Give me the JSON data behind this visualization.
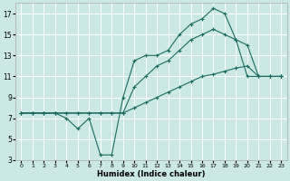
{
  "xlabel": "Humidex (Indice chaleur)",
  "bg_color": "#cce8e4",
  "grid_color": "#ffffff",
  "line_color": "#1a6b60",
  "xlim": [
    -0.5,
    23.5
  ],
  "ylim": [
    3,
    18
  ],
  "xticks": [
    0,
    1,
    2,
    3,
    4,
    5,
    6,
    7,
    8,
    9,
    10,
    11,
    12,
    13,
    14,
    15,
    16,
    17,
    18,
    19,
    20,
    21,
    22,
    23
  ],
  "yticks": [
    3,
    5,
    7,
    9,
    11,
    13,
    15,
    17
  ],
  "series1_x": [
    0,
    1,
    2,
    3,
    4,
    5,
    6,
    7,
    8,
    9,
    10,
    11,
    12,
    13,
    14,
    15,
    16,
    17,
    18,
    19,
    20,
    21,
    22,
    23
  ],
  "series1_y": [
    7.5,
    7.5,
    7.5,
    7.5,
    7.5,
    7.5,
    7.5,
    7.5,
    7.5,
    7.5,
    8.0,
    8.5,
    9.0,
    9.5,
    10.0,
    10.5,
    11.0,
    11.2,
    11.5,
    11.8,
    12.0,
    11.0,
    11.0,
    11.0
  ],
  "series2_x": [
    0,
    1,
    2,
    3,
    4,
    5,
    6,
    7,
    8,
    9,
    10,
    11,
    12,
    13,
    14,
    15,
    16,
    17,
    18,
    19,
    20,
    21,
    22,
    23
  ],
  "series2_y": [
    7.5,
    7.5,
    7.5,
    7.5,
    7.5,
    7.5,
    7.5,
    7.5,
    7.5,
    7.5,
    10.0,
    11.0,
    12.0,
    12.5,
    13.5,
    14.5,
    15.0,
    15.5,
    15.0,
    14.5,
    14.0,
    11.0,
    11.0,
    11.0
  ],
  "series3_x": [
    0,
    1,
    2,
    3,
    4,
    5,
    6,
    7,
    8,
    9,
    10,
    11,
    12,
    13,
    14,
    15,
    16,
    17,
    18,
    19,
    20,
    21,
    22,
    23
  ],
  "series3_y": [
    7.5,
    7.5,
    7.5,
    7.5,
    7.0,
    6.0,
    7.0,
    3.5,
    3.5,
    9.0,
    12.5,
    13.0,
    13.0,
    13.5,
    15.0,
    16.0,
    16.5,
    17.5,
    17.0,
    14.5,
    11.0,
    11.0,
    11.0,
    11.0
  ],
  "xlabel_fontsize": 6,
  "tick_fontsize_x": 4.5,
  "tick_fontsize_y": 5.5,
  "linewidth": 0.8,
  "markersize": 2.5
}
